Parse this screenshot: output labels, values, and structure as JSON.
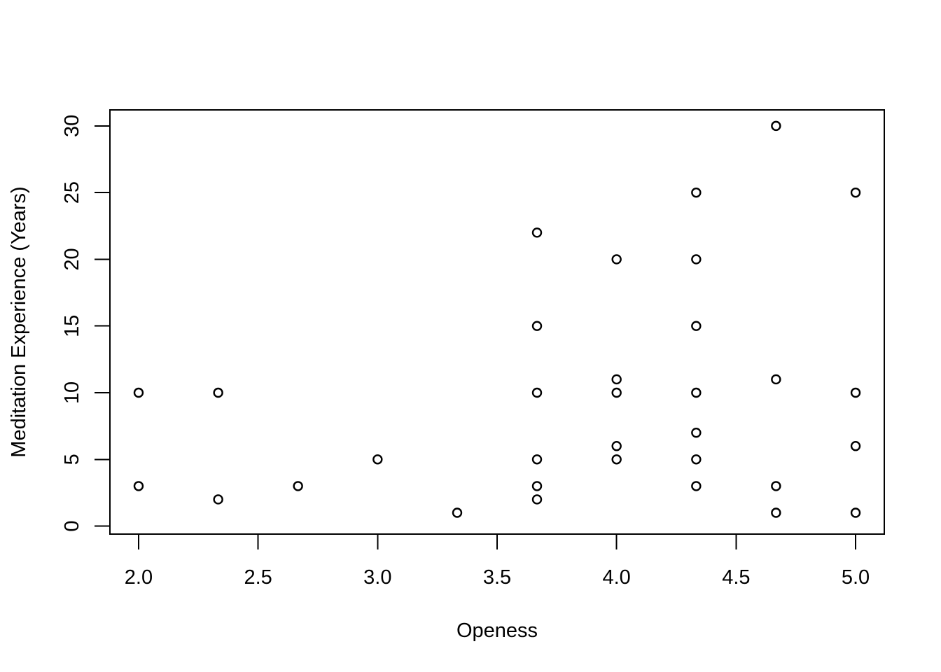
{
  "chart_data": {
    "type": "scatter",
    "title": "",
    "xlabel": "Openess",
    "ylabel": "Meditation Experience (Years)",
    "xlim": [
      1.88,
      5.12
    ],
    "ylim": [
      -0.6,
      31.2
    ],
    "xticks": [
      2.0,
      2.5,
      3.0,
      3.5,
      4.0,
      4.5,
      5.0
    ],
    "xtick_labels": [
      "2.0",
      "2.5",
      "3.0",
      "3.5",
      "4.0",
      "4.5",
      "5.0"
    ],
    "yticks": [
      0,
      5,
      10,
      15,
      20,
      25,
      30
    ],
    "ytick_labels": [
      "0",
      "5",
      "10",
      "15",
      "20",
      "25",
      "30"
    ],
    "grid": false,
    "legend": "none",
    "marker": "open-circle",
    "color": "#000000",
    "points": [
      {
        "x": 2.0,
        "y": 10
      },
      {
        "x": 2.0,
        "y": 3
      },
      {
        "x": 2.333,
        "y": 10
      },
      {
        "x": 2.333,
        "y": 2
      },
      {
        "x": 2.667,
        "y": 3
      },
      {
        "x": 3.0,
        "y": 5
      },
      {
        "x": 3.333,
        "y": 1
      },
      {
        "x": 3.667,
        "y": 22
      },
      {
        "x": 3.667,
        "y": 15
      },
      {
        "x": 3.667,
        "y": 10
      },
      {
        "x": 3.667,
        "y": 5
      },
      {
        "x": 3.667,
        "y": 3
      },
      {
        "x": 3.667,
        "y": 2
      },
      {
        "x": 4.0,
        "y": 20
      },
      {
        "x": 4.0,
        "y": 11
      },
      {
        "x": 4.0,
        "y": 10
      },
      {
        "x": 4.0,
        "y": 6
      },
      {
        "x": 4.0,
        "y": 5
      },
      {
        "x": 4.333,
        "y": 25
      },
      {
        "x": 4.333,
        "y": 20
      },
      {
        "x": 4.333,
        "y": 15
      },
      {
        "x": 4.333,
        "y": 10
      },
      {
        "x": 4.333,
        "y": 7
      },
      {
        "x": 4.333,
        "y": 5
      },
      {
        "x": 4.333,
        "y": 3
      },
      {
        "x": 4.667,
        "y": 30
      },
      {
        "x": 4.667,
        "y": 11
      },
      {
        "x": 4.667,
        "y": 3
      },
      {
        "x": 4.667,
        "y": 1
      },
      {
        "x": 5.0,
        "y": 25
      },
      {
        "x": 5.0,
        "y": 10
      },
      {
        "x": 5.0,
        "y": 6
      },
      {
        "x": 5.0,
        "y": 1
      }
    ]
  }
}
